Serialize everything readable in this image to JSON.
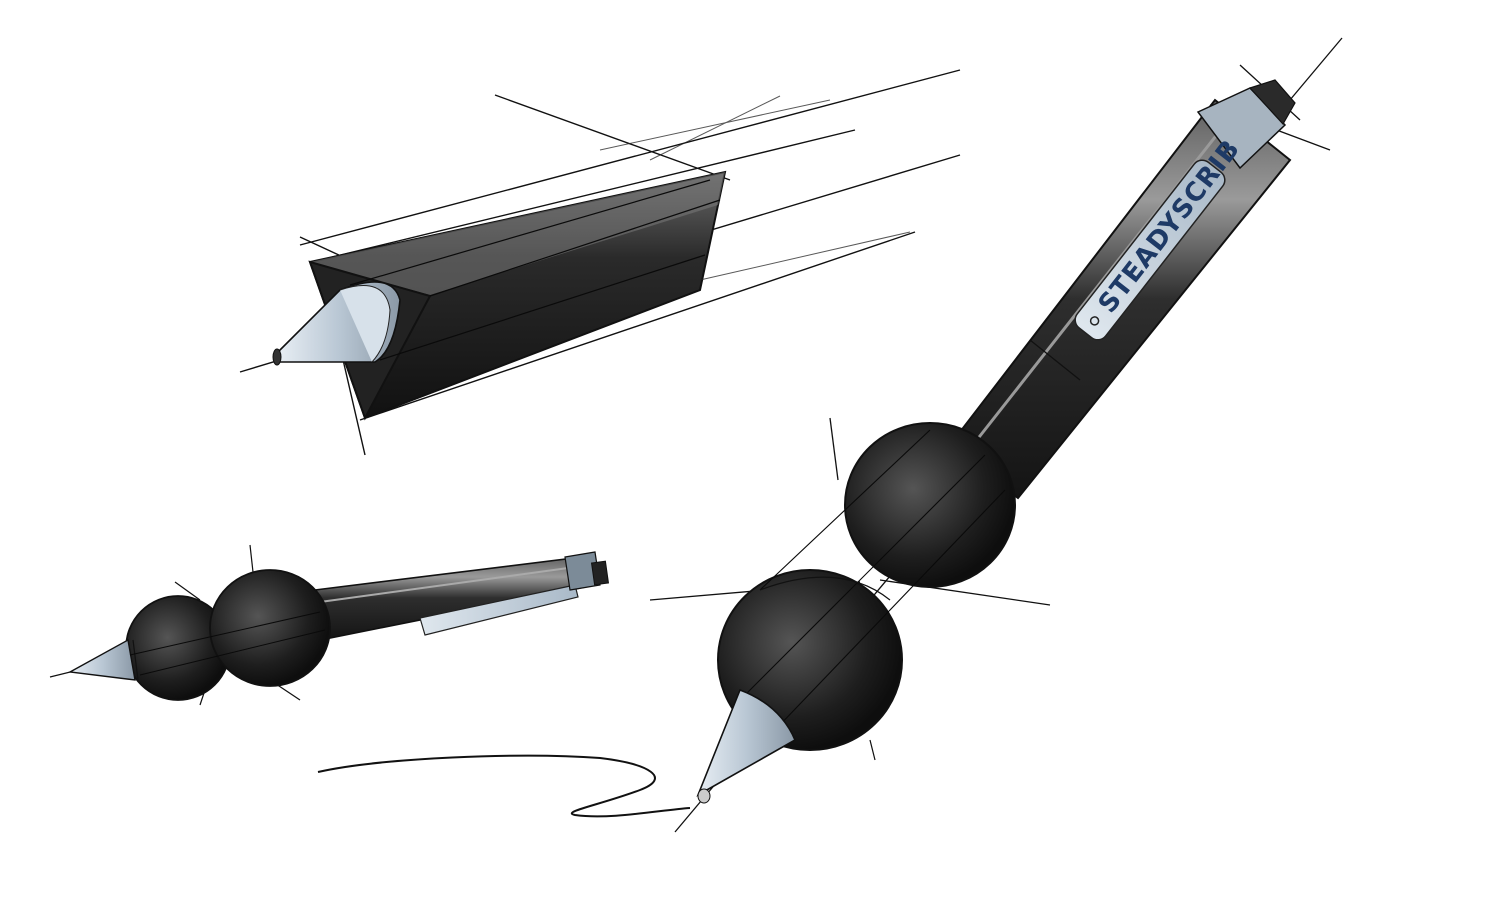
{
  "sketch": {
    "brand_label": "STEADYSCRIB",
    "colors": {
      "background": "#ffffff",
      "ink": "#111111",
      "body_dark": "#1c1c1c",
      "body_mid": "#3a3a3a",
      "highlight": "#8e8e8e",
      "tip": "#c9d6e2",
      "clip": "#bfcedb",
      "brand_text": "#1e3a66",
      "brand_accent": "#e0b43a"
    },
    "objects": [
      "triangular-pen-sketch",
      "small-bulb-grip-pen-sketch",
      "large-bulb-grip-pen-sketch",
      "ink-squiggle"
    ]
  }
}
